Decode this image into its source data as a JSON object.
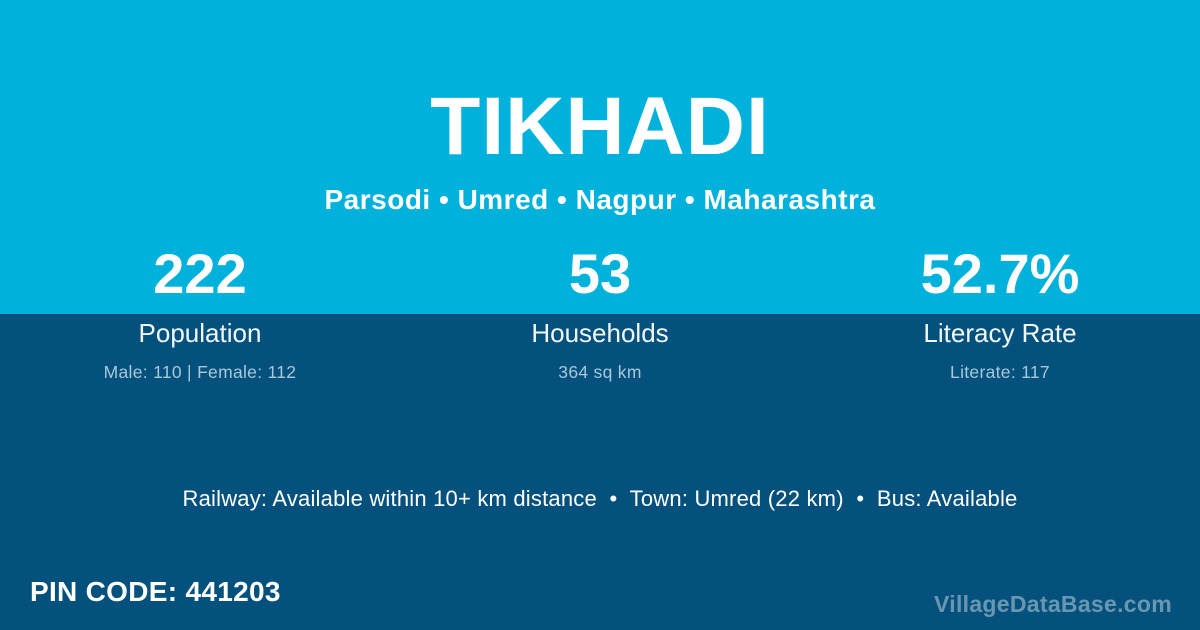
{
  "village": {
    "title": "TIKHADI",
    "breadcrumb": "Parsodi • Umred • Nagpur • Maharashtra"
  },
  "stats": [
    {
      "value": "222",
      "label": "Population",
      "detail": "Male: 110 | Female: 112"
    },
    {
      "value": "53",
      "label": "Households",
      "detail": "364 sq km"
    },
    {
      "value": "52.7%",
      "label": "Literacy Rate",
      "detail": "Literate: 117"
    }
  ],
  "transport": {
    "summary": "Railway: Available within 10+ km distance  •  Town: Umred (22 km)  •  Bus: Available"
  },
  "footer": {
    "pin_code": "PIN CODE: 441203",
    "watermark": "VillageDataBase.com"
  },
  "colors": {
    "header_cyan": "#00B1DB",
    "body_dark_blue": "#05517D",
    "detail_text": "#A9C8D8",
    "watermark_text": "rgba(255,255,255,0.40)"
  }
}
